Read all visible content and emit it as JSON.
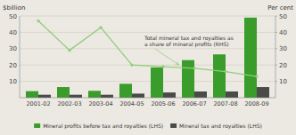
{
  "chart_data": {
    "type": "bar",
    "categories": [
      "2001-02",
      "2002-03",
      "2003-04",
      "2004-05",
      "2005-06",
      "2006-07",
      "2007-08",
      "2008-09"
    ],
    "series": [
      {
        "name": "Mineral profits before tax and royalties (LHS)",
        "color": "#3a9c2a",
        "values": [
          4.0,
          6.5,
          4.2,
          8.5,
          18.5,
          23.0,
          26.5,
          49.0
        ]
      },
      {
        "name": "Mineral tax and royalties (LHS)",
        "color": "#4a4a4a",
        "values": [
          1.8,
          1.8,
          1.8,
          2.5,
          3.2,
          3.8,
          3.8,
          6.5
        ]
      },
      {
        "type": "line",
        "axis": "y2",
        "color": "#8fce7a",
        "marker": "diamond",
        "values": [
          47,
          29,
          43,
          20,
          19,
          18,
          16,
          13
        ]
      }
    ],
    "ylabel": "$billion",
    "y2label": "Per cent",
    "ylim": [
      0,
      50
    ],
    "yticks": [
      10,
      20,
      30,
      40,
      50
    ],
    "y2lim": [
      0,
      50
    ],
    "y2ticks": [
      10,
      20,
      30,
      40,
      50
    ],
    "annotation": "Total mineral tax and royalties as\na share of mineral profits (RHS)",
    "grid": true,
    "legend": "bottom"
  }
}
